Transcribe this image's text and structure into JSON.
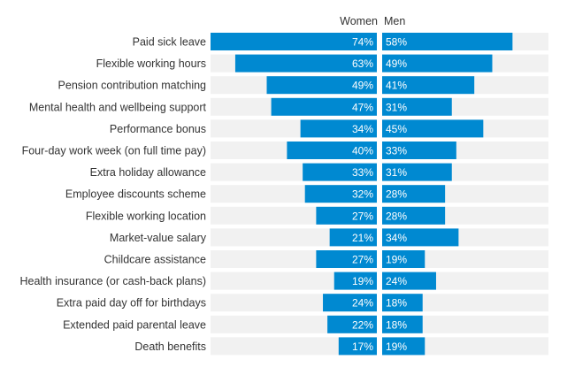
{
  "chart_data": {
    "type": "bar",
    "orientation": "horizontal-diverging",
    "categories": [
      "Paid sick leave",
      "Flexible working hours",
      "Pension contribution matching",
      "Mental health and wellbeing support",
      "Performance bonus",
      "Four-day work week (on full time pay)",
      "Extra holiday allowance",
      "Employee discounts scheme",
      "Flexible working location",
      "Market-value salary",
      "Childcare assistance",
      "Health insurance (or cash-back plans)",
      "Extra paid day off for birthdays",
      "Extended paid parental leave",
      "Death benefits"
    ],
    "series": [
      {
        "name": "Women",
        "values": [
          74,
          63,
          49,
          47,
          34,
          40,
          33,
          32,
          27,
          21,
          27,
          19,
          24,
          22,
          17
        ]
      },
      {
        "name": "Men",
        "values": [
          58,
          49,
          41,
          31,
          45,
          33,
          31,
          28,
          28,
          34,
          19,
          24,
          18,
          18,
          19
        ]
      }
    ],
    "value_suffix": "%",
    "xlim": [
      0,
      74
    ],
    "colors": {
      "bar": "#0089d1",
      "track": "#f1f1f1",
      "text": "#333333"
    }
  }
}
